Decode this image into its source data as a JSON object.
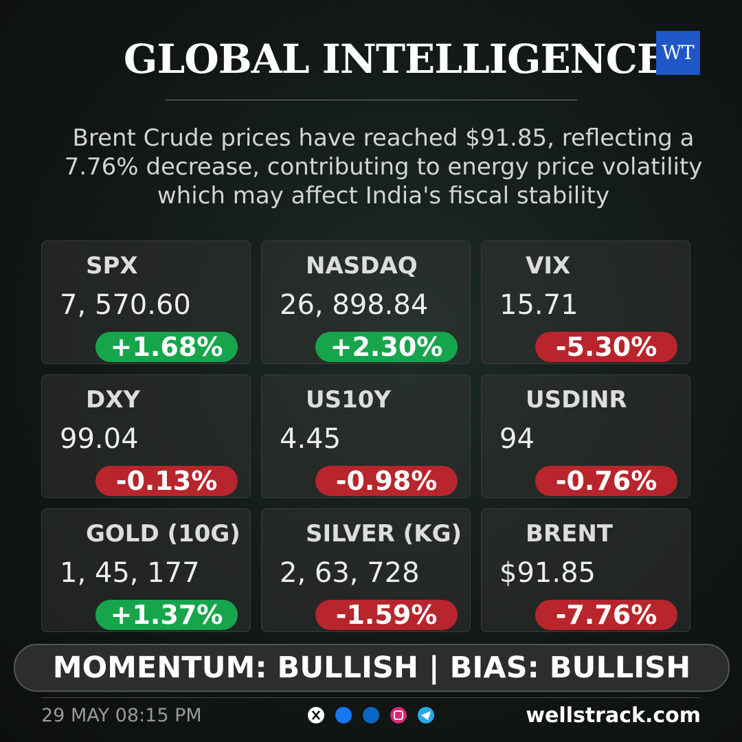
{
  "header": {
    "title": "GLOBAL INTELLIGENCE",
    "logo": "WT"
  },
  "summary": "Brent Crude prices have reached $91.85, reflecting a 7.76% decrease, contributing to energy price volatility which may affect India's fiscal stability",
  "cards": [
    {
      "name": "SPX",
      "value": "7, 570.60",
      "change": "+1.68%",
      "color": "#17a54c"
    },
    {
      "name": "NASDAQ",
      "value": "26, 898.84",
      "change": "+2.30%",
      "color": "#17a54c"
    },
    {
      "name": "VIX",
      "value": "15.71",
      "change": "-5.30%",
      "color": "#b8252c"
    },
    {
      "name": "DXY",
      "value": "99.04",
      "change": "-0.13%",
      "color": "#b8252c"
    },
    {
      "name": "US10Y",
      "value": "4.45",
      "change": "-0.98%",
      "color": "#b8252c"
    },
    {
      "name": "USDINR",
      "value": "94",
      "change": "-0.76%",
      "color": "#b8252c"
    },
    {
      "name": "GOLD (10G)",
      "value": "1, 45, 177",
      "change": "+1.37%",
      "color": "#17a54c"
    },
    {
      "name": "SILVER (KG)",
      "value": "2, 63, 728",
      "change": "-1.59%",
      "color": "#b8252c"
    },
    {
      "name": "BRENT",
      "value": "$91.85",
      "change": "-7.76%",
      "color": "#b8252c"
    }
  ],
  "banner": "MOMENTUM: BULLISH | BIAS: BULLISH",
  "footer": {
    "date": "29 MAY 08:15 PM",
    "site": "wellstrack.com"
  }
}
